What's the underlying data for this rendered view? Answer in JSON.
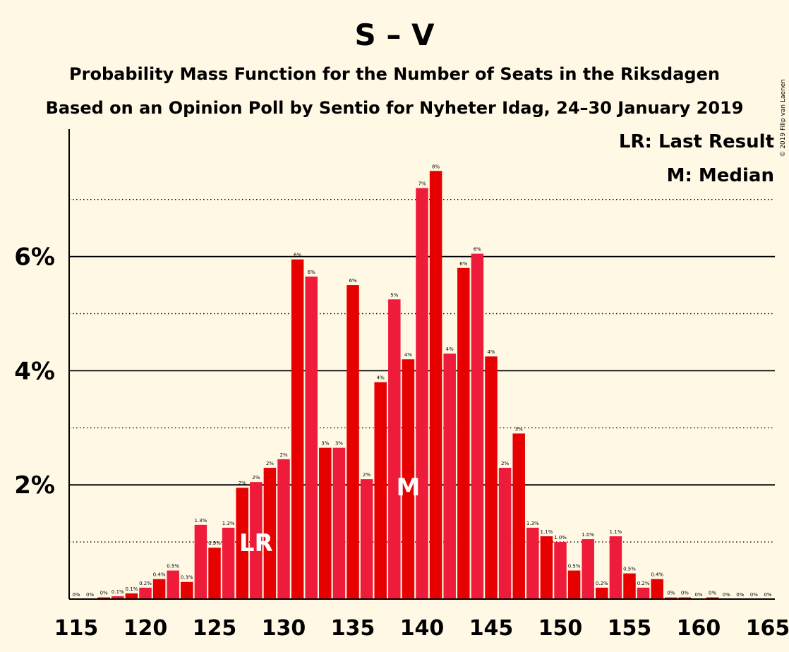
{
  "copyright": "© 2019 Filip van Laenen",
  "chart_data": {
    "type": "bar",
    "title": "S – V",
    "subtitle": "Probability Mass Function for the Number of Seats in the Riksdagen",
    "subtitle2": "Based on an Opinion Poll by Sentio for Nyheter Idag, 24–30 January 2019",
    "legend": [
      "LR: Last Result",
      "M: Median"
    ],
    "legend_position": "top-right",
    "xlabel": "",
    "ylabel": "",
    "x": [
      115,
      116,
      117,
      118,
      119,
      120,
      121,
      122,
      123,
      124,
      125,
      126,
      127,
      128,
      129,
      130,
      131,
      132,
      133,
      134,
      135,
      136,
      137,
      138,
      139,
      140,
      141,
      142,
      143,
      144,
      145,
      146,
      147,
      148,
      149,
      150,
      151,
      152,
      153,
      154,
      155,
      156,
      157,
      158,
      159,
      160,
      161,
      162,
      163,
      164,
      165
    ],
    "values": [
      0,
      0,
      0.03,
      0.05,
      0.1,
      0.2,
      0.35,
      0.5,
      0.3,
      1.3,
      0.9,
      1.25,
      1.95,
      2.05,
      2.3,
      2.45,
      5.95,
      5.65,
      2.65,
      2.65,
      5.5,
      2.1,
      3.8,
      5.25,
      4.2,
      7.2,
      7.5,
      4.3,
      5.8,
      6.05,
      4.25,
      2.3,
      2.9,
      1.25,
      1.1,
      1.0,
      0.5,
      1.05,
      0.2,
      1.1,
      0.45,
      0.2,
      0.35,
      0.03,
      0.03,
      0,
      0.03,
      0,
      0,
      0,
      0
    ],
    "data_labels": [
      "0%",
      "0%",
      "0%",
      "0.1%",
      "0.1%",
      "0.2%",
      "0.4%",
      "0.5%",
      "0.3%",
      "1.3%",
      "0.9%",
      "1.3%",
      "2%",
      "2%",
      "2%",
      "2%",
      "6%",
      "6%",
      "3%",
      "3%",
      "6%",
      "2%",
      "4%",
      "5%",
      "4%",
      "7%",
      "8%",
      "4%",
      "6%",
      "6%",
      "4%",
      "2%",
      "3%",
      "1.3%",
      "1.1%",
      "1.0%",
      "0.5%",
      "1.0%",
      "0.2%",
      "1.1%",
      "0.5%",
      "0.2%",
      "0.4%",
      "0%",
      "0%",
      "0%",
      "0%",
      "0%",
      "0%",
      "0%",
      "0%"
    ],
    "x_ticks": [
      "115",
      "120",
      "125",
      "130",
      "135",
      "140",
      "145",
      "150",
      "155",
      "160",
      "165"
    ],
    "y_ticks": [
      "2%",
      "4%",
      "6%"
    ],
    "ylim": [
      0,
      8.3
    ],
    "grid": true,
    "last_result": {
      "seat": 128,
      "label": "LR"
    },
    "median": {
      "seat": 139,
      "label": "M"
    },
    "colors": {
      "bar_even": "#E60000",
      "bar_odd": "#EE1C3A",
      "background": "#FFF8E5"
    }
  }
}
